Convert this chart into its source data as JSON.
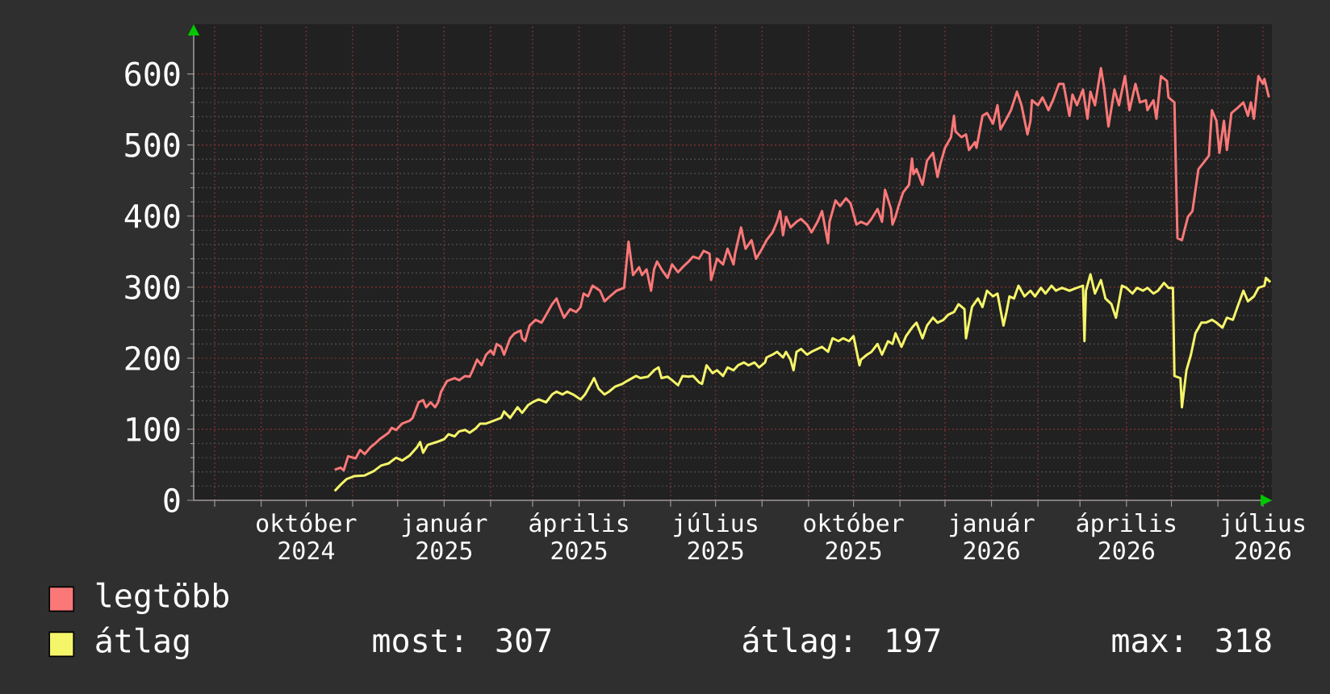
{
  "chart_data": {
    "type": "line",
    "series": [
      {
        "name": "legtöbb",
        "color": "#fa7878",
        "x": [
          "2024-10-20",
          "2024-10-24",
          "2024-10-26",
          "2024-10-29",
          "2024-11-03",
          "2024-11-06",
          "2024-11-09",
          "2024-11-13",
          "2024-11-16",
          "2024-11-19",
          "2024-11-25",
          "2024-11-27",
          "2024-11-30",
          "2024-12-04",
          "2024-12-09",
          "2024-12-11",
          "2024-12-15",
          "2024-12-18",
          "2024-12-20",
          "2024-12-23",
          "2024-12-26",
          "2024-12-28",
          "2024-12-30",
          "2025-01-03",
          "2025-01-08",
          "2025-01-11",
          "2025-01-15",
          "2025-01-18",
          "2025-01-20",
          "2025-01-23",
          "2025-01-26",
          "2025-01-29",
          "2025-02-01",
          "2025-02-03",
          "2025-02-05",
          "2025-02-08",
          "2025-02-10",
          "2025-02-14",
          "2025-02-17",
          "2025-02-21",
          "2025-02-22",
          "2025-02-24",
          "2025-02-27",
          "2025-03-03",
          "2025-03-07",
          "2025-03-10",
          "2025-03-14",
          "2025-03-17",
          "2025-03-19",
          "2025-03-22",
          "2025-03-26",
          "2025-03-30",
          "2025-04-02",
          "2025-04-04",
          "2025-04-07",
          "2025-04-10",
          "2025-04-15",
          "2025-04-18",
          "2025-04-21",
          "2025-04-26",
          "2025-05-01",
          "2025-05-04",
          "2025-05-07",
          "2025-05-11",
          "2025-05-13",
          "2025-05-16",
          "2025-05-19",
          "2025-05-21",
          "2025-05-23",
          "2025-05-26",
          "2025-05-30",
          "2025-06-02",
          "2025-06-06",
          "2025-06-09",
          "2025-06-13",
          "2025-06-16",
          "2025-06-20",
          "2025-06-23",
          "2025-06-27",
          "2025-06-28",
          "2025-07-02",
          "2025-07-06",
          "2025-07-09",
          "2025-07-13",
          "2025-07-14",
          "2025-07-18",
          "2025-07-21",
          "2025-07-25",
          "2025-07-28",
          "2025-08-01",
          "2025-08-04",
          "2025-08-08",
          "2025-08-11",
          "2025-08-13",
          "2025-08-15",
          "2025-08-17",
          "2025-08-20",
          "2025-08-24",
          "2025-08-27",
          "2025-08-31",
          "2025-09-03",
          "2025-09-07",
          "2025-09-10",
          "2025-09-14",
          "2025-09-15",
          "2025-09-19",
          "2025-09-22",
          "2025-09-26",
          "2025-09-29",
          "2025-10-03",
          "2025-10-06",
          "2025-10-10",
          "2025-10-13",
          "2025-10-17",
          "2025-10-20",
          "2025-10-22",
          "2025-10-26",
          "2025-10-27",
          "2025-10-29",
          "2025-10-31",
          "2025-11-03",
          "2025-11-07",
          "2025-11-09",
          "2025-11-10",
          "2025-11-12",
          "2025-11-16",
          "2025-11-19",
          "2025-11-23",
          "2025-11-26",
          "2025-11-28",
          "2025-12-01",
          "2025-12-05",
          "2025-12-07",
          "2025-12-08",
          "2025-12-12",
          "2025-12-15",
          "2025-12-17",
          "2025-12-21",
          "2025-12-22",
          "2025-12-26",
          "2025-12-29",
          "2026-01-02",
          "2026-01-05",
          "2026-01-07",
          "2026-01-11",
          "2026-01-14",
          "2026-01-18",
          "2026-01-21",
          "2026-01-25",
          "2026-01-27",
          "2026-01-28",
          "2026-02-01",
          "2026-02-04",
          "2026-02-08",
          "2026-02-11",
          "2026-02-15",
          "2026-02-18",
          "2026-02-22",
          "2026-02-24",
          "2026-02-27",
          "2026-03-03",
          "2026-03-06",
          "2026-03-08",
          "2026-03-11",
          "2026-03-15",
          "2026-03-17",
          "2026-03-20",
          "2026-03-24",
          "2026-03-27",
          "2026-03-31",
          "2026-04-03",
          "2026-04-07",
          "2026-04-10",
          "2026-04-14",
          "2026-04-15",
          "2026-04-19",
          "2026-04-21",
          "2026-04-24",
          "2026-04-28",
          "2026-04-29",
          "2026-05-03",
          "2026-05-05",
          "2026-05-08",
          "2026-05-12",
          "2026-05-15",
          "2026-05-19",
          "2026-05-22",
          "2026-05-26",
          "2026-05-28",
          "2026-05-31",
          "2026-06-02",
          "2026-06-05",
          "2026-06-07",
          "2026-06-10",
          "2026-06-14",
          "2026-06-18",
          "2026-06-21",
          "2026-06-23",
          "2026-06-25",
          "2026-06-28",
          "2026-07-01",
          "2026-07-02",
          "2026-07-05"
        ],
        "values": [
          43,
          46,
          42,
          62,
          59,
          71,
          65,
          75,
          80,
          86,
          95,
          102,
          99,
          108,
          112,
          116,
          138,
          141,
          131,
          138,
          131,
          138,
          153,
          168,
          172,
          169,
          175,
          174,
          183,
          198,
          190,
          205,
          211,
          205,
          220,
          216,
          205,
          228,
          235,
          239,
          228,
          224,
          246,
          254,
          250,
          261,
          276,
          284,
          272,
          257,
          269,
          265,
          272,
          291,
          287,
          302,
          295,
          280,
          286,
          295,
          299,
          364,
          317,
          328,
          317,
          325,
          295,
          325,
          336,
          325,
          313,
          332,
          321,
          328,
          336,
          343,
          340,
          351,
          347,
          310,
          340,
          332,
          354,
          332,
          347,
          384,
          354,
          366,
          340,
          354,
          366,
          377,
          392,
          407,
          373,
          399,
          384,
          392,
          396,
          388,
          377,
          392,
          407,
          362,
          392,
          422,
          414,
          425,
          418,
          388,
          392,
          388,
          396,
          410,
          392,
          437,
          410,
          388,
          399,
          414,
          433,
          444,
          481,
          459,
          466,
          444,
          478,
          489,
          455,
          474,
          496,
          511,
          541,
          519,
          511,
          515,
          493,
          504,
          496,
          541,
          545,
          530,
          556,
          522,
          537,
          549,
          575,
          556,
          515,
          534,
          563,
          556,
          567,
          549,
          563,
          586,
          586,
          541,
          571,
          556,
          578,
          537,
          575,
          556,
          608,
          582,
          526,
          578,
          556,
          597,
          549,
          586,
          560,
          563,
          549,
          563,
          537,
          597,
          590,
          567,
          560,
          369,
          366,
          399,
          407,
          466,
          474,
          485,
          549,
          534,
          489,
          534,
          493,
          545,
          552,
          560,
          541,
          560,
          537,
          597,
          586,
          593,
          567
        ]
      },
      {
        "name": "átlag",
        "color": "#f5f56a",
        "x": [
          "2024-10-20",
          "2024-10-24",
          "2024-10-28",
          "2024-11-02",
          "2024-11-09",
          "2024-11-15",
          "2024-11-20",
          "2024-11-25",
          "2024-11-30",
          "2024-12-04",
          "2024-12-09",
          "2024-12-14",
          "2024-12-16",
          "2024-12-18",
          "2024-12-21",
          "2024-12-27",
          "2025-01-01",
          "2025-01-04",
          "2025-01-08",
          "2025-01-11",
          "2025-01-15",
          "2025-01-18",
          "2025-01-22",
          "2025-01-25",
          "2025-01-29",
          "2025-02-03",
          "2025-02-08",
          "2025-02-10",
          "2025-02-14",
          "2025-02-19",
          "2025-02-22",
          "2025-02-26",
          "2025-03-01",
          "2025-03-05",
          "2025-03-10",
          "2025-03-14",
          "2025-03-17",
          "2025-03-21",
          "2025-03-24",
          "2025-03-28",
          "2025-04-02",
          "2025-04-05",
          "2025-04-09",
          "2025-04-11",
          "2025-04-14",
          "2025-04-18",
          "2025-04-21",
          "2025-04-25",
          "2025-04-30",
          "2025-05-03",
          "2025-05-09",
          "2025-05-12",
          "2025-05-17",
          "2025-05-21",
          "2025-05-24",
          "2025-05-26",
          "2025-05-30",
          "2025-06-02",
          "2025-06-06",
          "2025-06-09",
          "2025-06-13",
          "2025-06-16",
          "2025-06-20",
          "2025-06-22",
          "2025-06-25",
          "2025-06-29",
          "2025-07-02",
          "2025-07-06",
          "2025-07-09",
          "2025-07-13",
          "2025-07-16",
          "2025-07-20",
          "2025-07-23",
          "2025-07-27",
          "2025-07-30",
          "2025-08-03",
          "2025-08-04",
          "2025-08-08",
          "2025-08-11",
          "2025-08-15",
          "2025-08-17",
          "2025-08-20",
          "2025-08-22",
          "2025-08-24",
          "2025-08-27",
          "2025-08-31",
          "2025-09-03",
          "2025-09-07",
          "2025-09-10",
          "2025-09-14",
          "2025-09-17",
          "2025-09-21",
          "2025-09-24",
          "2025-09-28",
          "2025-10-01",
          "2025-10-05",
          "2025-10-06",
          "2025-10-10",
          "2025-10-13",
          "2025-10-17",
          "2025-10-20",
          "2025-10-24",
          "2025-10-27",
          "2025-10-29",
          "2025-11-02",
          "2025-11-05",
          "2025-11-09",
          "2025-11-12",
          "2025-11-16",
          "2025-11-19",
          "2025-11-23",
          "2025-11-26",
          "2025-11-30",
          "2025-12-03",
          "2025-12-07",
          "2025-12-10",
          "2025-12-14",
          "2025-12-15",
          "2025-12-19",
          "2025-12-23",
          "2025-12-26",
          "2025-12-29",
          "2026-01-02",
          "2026-01-05",
          "2026-01-09",
          "2026-01-11",
          "2026-01-13",
          "2026-01-16",
          "2026-01-19",
          "2026-01-23",
          "2026-01-27",
          "2026-01-30",
          "2026-02-03",
          "2026-02-06",
          "2026-02-10",
          "2026-02-13",
          "2026-02-17",
          "2026-02-22",
          "2026-02-27",
          "2026-03-03",
          "2026-03-04",
          "2026-03-05",
          "2026-03-08",
          "2026-03-11",
          "2026-03-15",
          "2026-03-18",
          "2026-03-22",
          "2026-03-25",
          "2026-03-29",
          "2026-04-01",
          "2026-04-05",
          "2026-04-08",
          "2026-04-12",
          "2026-04-15",
          "2026-04-19",
          "2026-04-22",
          "2026-04-26",
          "2026-04-29",
          "2026-05-02",
          "2026-05-03",
          "2026-05-07",
          "2026-05-08",
          "2026-05-11",
          "2026-05-14",
          "2026-05-17",
          "2026-05-21",
          "2026-05-24",
          "2026-05-28",
          "2026-05-31",
          "2026-06-04",
          "2026-06-07",
          "2026-06-11",
          "2026-06-14",
          "2026-06-18",
          "2026-06-21",
          "2026-06-25",
          "2026-06-28",
          "2026-07-02",
          "2026-07-03",
          "2026-07-06"
        ],
        "values": [
          13,
          22,
          30,
          34,
          35,
          41,
          49,
          52,
          60,
          56,
          63,
          75,
          82,
          67,
          78,
          82,
          86,
          93,
          90,
          97,
          99,
          95,
          101,
          108,
          108,
          112,
          116,
          125,
          116,
          131,
          123,
          134,
          138,
          142,
          138,
          149,
          153,
          149,
          153,
          149,
          142,
          149,
          164,
          172,
          157,
          149,
          153,
          160,
          164,
          168,
          175,
          172,
          174,
          183,
          187,
          172,
          174,
          169,
          162,
          175,
          174,
          175,
          166,
          164,
          190,
          179,
          183,
          175,
          187,
          183,
          190,
          194,
          190,
          194,
          187,
          194,
          201,
          205,
          209,
          201,
          209,
          198,
          183,
          209,
          213,
          205,
          209,
          213,
          216,
          209,
          228,
          224,
          228,
          224,
          231,
          190,
          198,
          205,
          209,
          220,
          205,
          224,
          220,
          235,
          216,
          231,
          243,
          250,
          228,
          246,
          257,
          250,
          254,
          261,
          265,
          276,
          269,
          228,
          272,
          284,
          272,
          295,
          287,
          291,
          246,
          265,
          287,
          284,
          302,
          287,
          295,
          287,
          299,
          291,
          302,
          295,
          299,
          295,
          299,
          302,
          224,
          295,
          318,
          291,
          310,
          284,
          276,
          257,
          302,
          299,
          291,
          299,
          295,
          299,
          291,
          295,
          306,
          299,
          299,
          175,
          172,
          131,
          183,
          205,
          235,
          250,
          250,
          254,
          250,
          243,
          257,
          254,
          272,
          295,
          280,
          287,
          299,
          302,
          313,
          307
        ]
      }
    ],
    "xlim": [
      "2024-07-18",
      "2026-07-07"
    ],
    "xticks": [
      {
        "value": "2024-08-01",
        "label": null
      },
      {
        "value": "2024-09-01",
        "label": null
      },
      {
        "value": "2024-10-01",
        "label": "október 2024"
      },
      {
        "value": "2024-11-01",
        "label": null
      },
      {
        "value": "2024-12-01",
        "label": null
      },
      {
        "value": "2025-01-01",
        "label": "január 2025"
      },
      {
        "value": "2025-02-01",
        "label": null
      },
      {
        "value": "2025-03-01",
        "label": null
      },
      {
        "value": "2025-04-01",
        "label": "április 2025"
      },
      {
        "value": "2025-05-01",
        "label": null
      },
      {
        "value": "2025-06-01",
        "label": null
      },
      {
        "value": "2025-07-01",
        "label": "július 2025"
      },
      {
        "value": "2025-08-01",
        "label": null
      },
      {
        "value": "2025-09-01",
        "label": null
      },
      {
        "value": "2025-10-01",
        "label": "október 2025"
      },
      {
        "value": "2025-11-01",
        "label": null
      },
      {
        "value": "2025-12-01",
        "label": null
      },
      {
        "value": "2026-01-01",
        "label": "január 2026"
      },
      {
        "value": "2026-02-01",
        "label": null
      },
      {
        "value": "2026-03-01",
        "label": null
      },
      {
        "value": "2026-04-01",
        "label": "április 2026"
      },
      {
        "value": "2026-05-01",
        "label": null
      },
      {
        "value": "2026-06-01",
        "label": null
      },
      {
        "value": "2026-07-01",
        "label": "július 2026"
      }
    ],
    "ylim": [
      0,
      670
    ],
    "yticks": [
      0,
      100,
      200,
      300,
      400,
      500,
      600
    ],
    "grid": true,
    "legend": "bottom left",
    "annotations": [
      "most: 307",
      "átlag: 197",
      "max: 318"
    ]
  }
}
